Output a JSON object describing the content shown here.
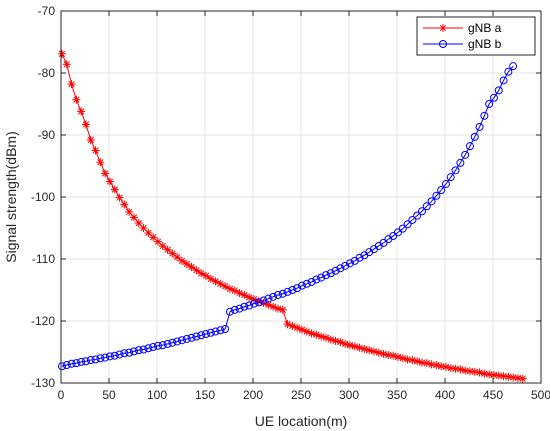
{
  "chart_data": {
    "type": "line",
    "title": "",
    "xlabel": "UE location(m)",
    "ylabel": "Signal strength(dBm)",
    "xlim": [
      0,
      500
    ],
    "ylim": [
      -130,
      -70
    ],
    "xticks": [
      0,
      50,
      100,
      150,
      200,
      250,
      300,
      350,
      400,
      450,
      500
    ],
    "yticks": [
      -130,
      -120,
      -110,
      -100,
      -90,
      -80,
      -70
    ],
    "grid": true,
    "legend_position": "top-right",
    "series": [
      {
        "name": "gNB a",
        "color": "#ff0000",
        "marker": "asterisk",
        "x": [
          1,
          6,
          11,
          16,
          21,
          26,
          31,
          36,
          41,
          46,
          51,
          56,
          61,
          66,
          71,
          76,
          81,
          86,
          91,
          96,
          101,
          106,
          111,
          116,
          121,
          126,
          131,
          136,
          141,
          146,
          151,
          156,
          161,
          166,
          171,
          176,
          181,
          186,
          191,
          196,
          201,
          206,
          211,
          216,
          221,
          226,
          231,
          236,
          241,
          246,
          251,
          256,
          261,
          266,
          271,
          276,
          281,
          286,
          291,
          296,
          301,
          306,
          311,
          316,
          321,
          326,
          331,
          336,
          341,
          346,
          351,
          356,
          361,
          366,
          371,
          376,
          381,
          386,
          391,
          396,
          401,
          406,
          411,
          416,
          421,
          426,
          431,
          436,
          441,
          446,
          451,
          456,
          461,
          466,
          471,
          476,
          481
        ],
        "y": [
          -76.9,
          -78.6,
          -81.8,
          -84.3,
          -86.2,
          -88.3,
          -90.8,
          -92.5,
          -94.4,
          -96.2,
          -97.5,
          -98.8,
          -100.1,
          -101.2,
          -102.4,
          -103.3,
          -104.2,
          -105.0,
          -105.8,
          -106.5,
          -107.2,
          -107.9,
          -108.5,
          -109.1,
          -109.7,
          -110.3,
          -110.8,
          -111.3,
          -111.8,
          -112.3,
          -112.7,
          -113.2,
          -113.6,
          -114.0,
          -114.4,
          -114.8,
          -115.1,
          -115.5,
          -115.8,
          -116.2,
          -116.5,
          -116.8,
          -117.1,
          -117.4,
          -117.7,
          -118.0,
          -118.2,
          -120.5,
          -120.8,
          -121.1,
          -121.4,
          -121.7,
          -122.0,
          -122.2,
          -122.5,
          -122.7,
          -123.0,
          -123.2,
          -123.4,
          -123.7,
          -123.9,
          -124.1,
          -124.3,
          -124.5,
          -124.7,
          -124.9,
          -125.1,
          -125.3,
          -125.5,
          -125.6,
          -125.8,
          -126.0,
          -126.2,
          -126.3,
          -126.5,
          -126.7,
          -126.8,
          -127.0,
          -127.1,
          -127.3,
          -127.4,
          -127.6,
          -127.7,
          -127.8,
          -128.0,
          -128.1,
          -128.2,
          -128.3,
          -128.5,
          -128.6,
          -128.7,
          -128.8,
          -128.9,
          -129.0,
          -129.1,
          -129.2,
          -129.3
        ]
      },
      {
        "name": "gNB b",
        "color": "#0000ff",
        "marker": "circle",
        "x": [
          1,
          6,
          11,
          16,
          21,
          26,
          31,
          36,
          41,
          46,
          51,
          56,
          61,
          66,
          71,
          76,
          81,
          86,
          91,
          96,
          101,
          106,
          111,
          116,
          121,
          126,
          131,
          136,
          141,
          146,
          151,
          156,
          161,
          166,
          171,
          176,
          181,
          186,
          191,
          196,
          201,
          206,
          211,
          216,
          221,
          226,
          231,
          236,
          241,
          246,
          251,
          256,
          261,
          266,
          271,
          276,
          281,
          286,
          291,
          296,
          301,
          306,
          311,
          316,
          321,
          326,
          331,
          336,
          341,
          346,
          351,
          356,
          361,
          366,
          371,
          376,
          381,
          386,
          391,
          396,
          401,
          406,
          411,
          416,
          421,
          426,
          431,
          436,
          441,
          446,
          451,
          456,
          461,
          466,
          471
        ],
        "y": [
          -127.3,
          -127.1,
          -126.9,
          -126.8,
          -126.6,
          -126.5,
          -126.3,
          -126.2,
          -126.0,
          -125.9,
          -125.7,
          -125.6,
          -125.4,
          -125.2,
          -125.1,
          -124.9,
          -124.7,
          -124.6,
          -124.4,
          -124.2,
          -124.0,
          -123.9,
          -123.7,
          -123.5,
          -123.3,
          -123.1,
          -122.9,
          -122.7,
          -122.5,
          -122.3,
          -122.1,
          -121.9,
          -121.7,
          -121.5,
          -121.3,
          -118.5,
          -118.2,
          -118.0,
          -117.7,
          -117.5,
          -117.2,
          -117.0,
          -116.7,
          -116.4,
          -116.1,
          -115.8,
          -115.6,
          -115.3,
          -115.0,
          -114.7,
          -114.3,
          -114.0,
          -113.7,
          -113.3,
          -113.0,
          -112.6,
          -112.3,
          -111.9,
          -111.5,
          -111.1,
          -110.7,
          -110.3,
          -109.8,
          -109.4,
          -108.9,
          -108.4,
          -107.9,
          -107.4,
          -106.8,
          -106.3,
          -105.7,
          -105.1,
          -104.4,
          -103.7,
          -103.0,
          -102.3,
          -101.5,
          -100.7,
          -99.8,
          -98.9,
          -97.9,
          -96.8,
          -95.7,
          -94.5,
          -93.2,
          -91.8,
          -90.3,
          -88.7,
          -86.9,
          -85.0,
          -84.0,
          -82.8,
          -81.2,
          -79.8,
          -78.9
        ]
      }
    ]
  }
}
